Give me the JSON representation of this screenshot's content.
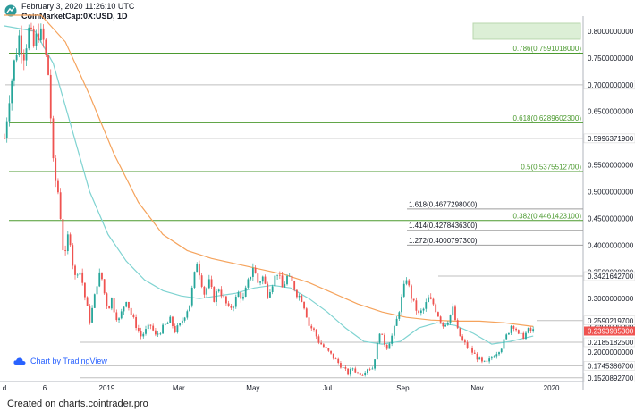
{
  "header": {
    "date": "February 3, 2020 11:26:10 UTC",
    "symbol": "CoinMarketCap:0X:USD, 1D"
  },
  "watermark": "Chart by TradingView",
  "credit": "Created on charts.cointrader.pro",
  "colors": {
    "candle_up": "#26a69a",
    "candle_down": "#ef5350",
    "ma_long": "#f5a35c",
    "ma_short": "#7fd3d1",
    "fib": "#4b9a2f",
    "current_price": "#ef5350"
  },
  "chart_data": {
    "type": "candlestick",
    "ylim": [
      0.145,
      0.82
    ],
    "xlim_days": [
      0,
      475
    ],
    "price_axis": [
      "0.8000000000",
      "0.7500000000",
      "0.7000000000",
      "0.6500000000",
      "0.6000000000",
      "0.5500000000",
      "0.5000000000",
      "0.4500000000",
      "0.4000000000",
      "0.3500000000",
      "0.3000000000",
      "0.2500000000",
      "0.2000000000",
      "0.1500000000"
    ],
    "time_axis": [
      {
        "label": "d",
        "day": 0
      },
      {
        "label": "6",
        "day": 33
      },
      {
        "label": "2019",
        "day": 84
      },
      {
        "label": "Mar",
        "day": 143
      },
      {
        "label": "May",
        "day": 204
      },
      {
        "label": "Jul",
        "day": 265
      },
      {
        "label": "Sep",
        "day": 327
      },
      {
        "label": "Nov",
        "day": 388
      },
      {
        "label": "2020",
        "day": 449
      }
    ],
    "fib_levels": [
      {
        "label": "0.786(0.7591018000)",
        "value": 0.7591018
      },
      {
        "label": "0.618(0.6289602300)",
        "value": 0.62896023
      },
      {
        "label": "0.5(0.5375512700)",
        "value": 0.53755127
      },
      {
        "label": "0.382(0.4461423100)",
        "value": 0.44614231
      }
    ],
    "ext_levels": [
      {
        "label": "1.618(0.4677298000)",
        "value": 0.4677298
      },
      {
        "label": "1.414(0.4278436300)",
        "value": 0.42784363
      },
      {
        "label": "1.272(0.4000797300)",
        "value": 0.40007973
      }
    ],
    "level_labels": [
      {
        "label": "0.7000000000",
        "value": 0.7
      },
      {
        "label": "0.5996371900",
        "value": 0.59963719
      },
      {
        "label": "0.3421642700",
        "value": 0.34216427
      },
      {
        "label": "0.2590219700",
        "value": 0.25902197
      },
      {
        "label": "0.2185182500",
        "value": 0.21851825
      },
      {
        "label": "0.1745386700",
        "value": 0.17453867
      },
      {
        "label": "0.1520892700",
        "value": 0.15208927
      }
    ],
    "current_price": {
      "label": "0.2393985300",
      "value": 0.23939853
    },
    "price_path": [
      [
        0,
        0.6
      ],
      [
        4,
        0.68
      ],
      [
        8,
        0.74
      ],
      [
        12,
        0.79
      ],
      [
        16,
        0.76
      ],
      [
        20,
        0.8
      ],
      [
        24,
        0.77
      ],
      [
        28,
        0.8
      ],
      [
        32,
        0.78
      ],
      [
        36,
        0.72
      ],
      [
        38,
        0.64
      ],
      [
        40,
        0.55
      ],
      [
        42,
        0.52
      ],
      [
        45,
        0.49
      ],
      [
        47,
        0.42
      ],
      [
        49,
        0.37
      ],
      [
        51,
        0.39
      ],
      [
        53,
        0.44
      ],
      [
        55,
        0.38
      ],
      [
        58,
        0.34
      ],
      [
        61,
        0.36
      ],
      [
        64,
        0.33
      ],
      [
        67,
        0.29
      ],
      [
        70,
        0.26
      ],
      [
        73,
        0.29
      ],
      [
        76,
        0.33
      ],
      [
        79,
        0.35
      ],
      [
        82,
        0.31
      ],
      [
        85,
        0.28
      ],
      [
        88,
        0.3
      ],
      [
        91,
        0.27
      ],
      [
        94,
        0.26
      ],
      [
        97,
        0.28
      ],
      [
        100,
        0.3
      ],
      [
        104,
        0.27
      ],
      [
        108,
        0.25
      ],
      [
        112,
        0.23
      ],
      [
        116,
        0.24
      ],
      [
        120,
        0.25
      ],
      [
        124,
        0.23
      ],
      [
        128,
        0.24
      ],
      [
        132,
        0.25
      ],
      [
        136,
        0.26
      ],
      [
        140,
        0.24
      ],
      [
        144,
        0.25
      ],
      [
        148,
        0.27
      ],
      [
        152,
        0.29
      ],
      [
        155,
        0.33
      ],
      [
        158,
        0.37
      ],
      [
        161,
        0.34
      ],
      [
        164,
        0.31
      ],
      [
        168,
        0.33
      ],
      [
        172,
        0.3
      ],
      [
        176,
        0.32
      ],
      [
        180,
        0.3
      ],
      [
        184,
        0.28
      ],
      [
        188,
        0.29
      ],
      [
        192,
        0.31
      ],
      [
        196,
        0.3
      ],
      [
        200,
        0.33
      ],
      [
        204,
        0.36
      ],
      [
        208,
        0.33
      ],
      [
        212,
        0.34
      ],
      [
        216,
        0.31
      ],
      [
        220,
        0.33
      ],
      [
        224,
        0.35
      ],
      [
        228,
        0.32
      ],
      [
        232,
        0.34
      ],
      [
        236,
        0.33
      ],
      [
        240,
        0.31
      ],
      [
        244,
        0.3
      ],
      [
        247,
        0.28
      ],
      [
        250,
        0.25
      ],
      [
        254,
        0.24
      ],
      [
        258,
        0.22
      ],
      [
        262,
        0.21
      ],
      [
        266,
        0.2
      ],
      [
        270,
        0.19
      ],
      [
        274,
        0.18
      ],
      [
        278,
        0.17
      ],
      [
        282,
        0.16
      ],
      [
        286,
        0.17
      ],
      [
        290,
        0.16
      ],
      [
        294,
        0.16
      ],
      [
        298,
        0.17
      ],
      [
        302,
        0.17
      ],
      [
        305,
        0.2
      ],
      [
        308,
        0.24
      ],
      [
        311,
        0.22
      ],
      [
        314,
        0.21
      ],
      [
        318,
        0.23
      ],
      [
        321,
        0.25
      ],
      [
        324,
        0.28
      ],
      [
        327,
        0.31
      ],
      [
        330,
        0.34
      ],
      [
        333,
        0.31
      ],
      [
        336,
        0.29
      ],
      [
        340,
        0.27
      ],
      [
        344,
        0.28
      ],
      [
        348,
        0.3
      ],
      [
        352,
        0.29
      ],
      [
        356,
        0.27
      ],
      [
        360,
        0.25
      ],
      [
        364,
        0.26
      ],
      [
        368,
        0.28
      ],
      [
        372,
        0.24
      ],
      [
        376,
        0.22
      ],
      [
        380,
        0.21
      ],
      [
        384,
        0.2
      ],
      [
        388,
        0.19
      ],
      [
        392,
        0.18
      ],
      [
        396,
        0.18
      ],
      [
        400,
        0.19
      ],
      [
        404,
        0.2
      ],
      [
        408,
        0.21
      ],
      [
        412,
        0.23
      ],
      [
        416,
        0.25
      ],
      [
        419,
        0.25
      ],
      [
        422,
        0.23
      ],
      [
        426,
        0.23
      ],
      [
        430,
        0.24
      ],
      [
        434,
        0.24
      ]
    ],
    "ma_long_path": [
      [
        0,
        0.83
      ],
      [
        30,
        0.83
      ],
      [
        50,
        0.78
      ],
      [
        70,
        0.68
      ],
      [
        90,
        0.57
      ],
      [
        110,
        0.48
      ],
      [
        130,
        0.42
      ],
      [
        150,
        0.39
      ],
      [
        170,
        0.375
      ],
      [
        190,
        0.365
      ],
      [
        210,
        0.355
      ],
      [
        230,
        0.345
      ],
      [
        250,
        0.33
      ],
      [
        270,
        0.31
      ],
      [
        290,
        0.29
      ],
      [
        310,
        0.275
      ],
      [
        330,
        0.265
      ],
      [
        350,
        0.26
      ],
      [
        370,
        0.258
      ],
      [
        390,
        0.258
      ],
      [
        410,
        0.255
      ],
      [
        434,
        0.248
      ]
    ],
    "ma_short_path": [
      [
        0,
        0.81
      ],
      [
        25,
        0.8
      ],
      [
        40,
        0.74
      ],
      [
        55,
        0.62
      ],
      [
        70,
        0.5
      ],
      [
        85,
        0.42
      ],
      [
        100,
        0.37
      ],
      [
        115,
        0.335
      ],
      [
        130,
        0.315
      ],
      [
        145,
        0.305
      ],
      [
        160,
        0.3
      ],
      [
        175,
        0.305
      ],
      [
        190,
        0.31
      ],
      [
        205,
        0.32
      ],
      [
        220,
        0.325
      ],
      [
        235,
        0.32
      ],
      [
        250,
        0.3
      ],
      [
        265,
        0.275
      ],
      [
        280,
        0.245
      ],
      [
        295,
        0.22
      ],
      [
        310,
        0.215
      ],
      [
        325,
        0.22
      ],
      [
        340,
        0.245
      ],
      [
        355,
        0.255
      ],
      [
        370,
        0.25
      ],
      [
        385,
        0.235
      ],
      [
        400,
        0.215
      ],
      [
        415,
        0.22
      ],
      [
        434,
        0.23
      ]
    ]
  }
}
